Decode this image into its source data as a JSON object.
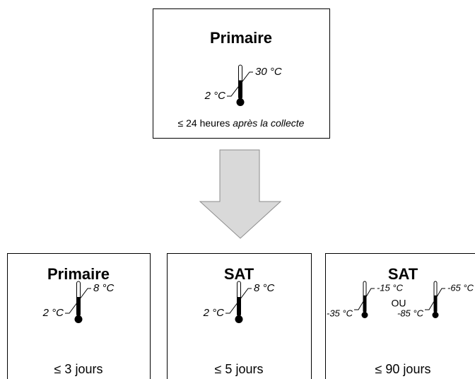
{
  "top": {
    "title": "Primaire",
    "thermometers": [
      {
        "high": "30 °C",
        "low": "2 °C"
      }
    ],
    "note": "≤ 24 heures",
    "note_italic": "après la collecte"
  },
  "boxes": [
    {
      "title": "Primaire",
      "thermometers": [
        {
          "high": "8 °C",
          "low": "2 °C"
        }
      ],
      "duration": "≤ 3 jours"
    },
    {
      "title": "SAT",
      "thermometers": [
        {
          "high": "8 °C",
          "low": "2 °C"
        }
      ],
      "duration": "≤ 5 jours"
    },
    {
      "title": "SAT",
      "thermometers": [
        {
          "high": "-15 °C",
          "low": "-35 °C"
        },
        {
          "high": "-65 °C",
          "low": "-85 °C"
        }
      ],
      "separator": "OU",
      "duration": "≤ 90 jours"
    }
  ]
}
